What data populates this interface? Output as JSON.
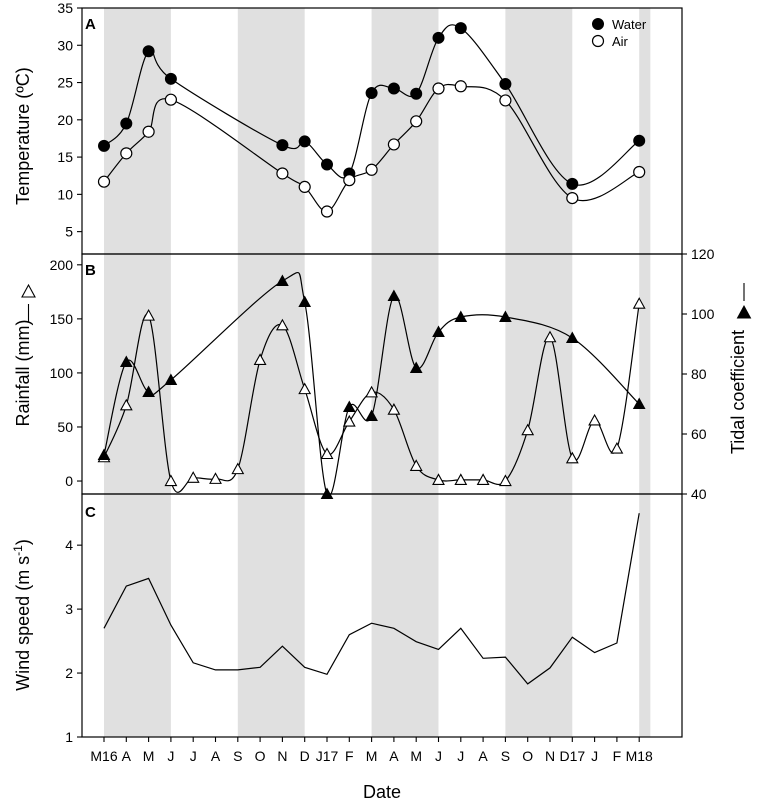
{
  "chart_data": {
    "type": "line",
    "x_label": "Date",
    "x_ticks": [
      "M16",
      "A",
      "M",
      "J",
      "J",
      "A",
      "S",
      "O",
      "N",
      "D",
      "J17",
      "F",
      "M",
      "A",
      "M",
      "J",
      "J",
      "A",
      "S",
      "O",
      "N",
      "D17",
      "J",
      "F",
      "M18"
    ],
    "shaded_bands": [
      [
        0,
        3
      ],
      [
        6,
        9
      ],
      [
        12,
        15
      ],
      [
        18,
        21
      ],
      [
        24,
        24.5
      ]
    ],
    "panels": [
      {
        "label": "A",
        "ylabel": "Temperature (ºC)",
        "ylim": [
          2,
          35
        ],
        "y_ticks": [
          5,
          10,
          15,
          20,
          25,
          30,
          35
        ],
        "legend": [
          {
            "name": "Water",
            "marker": "filled-circle"
          },
          {
            "name": "Air",
            "marker": "open-circle"
          }
        ],
        "series": [
          {
            "name": "Water",
            "marker": "filled-circle",
            "axis": "left",
            "points": [
              [
                0,
                16.5
              ],
              [
                1,
                19.5
              ],
              [
                2,
                29.2
              ],
              [
                3,
                25.5
              ],
              [
                8,
                16.6
              ],
              [
                9,
                17.1
              ],
              [
                10,
                14.0
              ],
              [
                11,
                12.8
              ],
              [
                12,
                23.6
              ],
              [
                13,
                24.2
              ],
              [
                14,
                23.5
              ],
              [
                15,
                31.0
              ],
              [
                16,
                32.3
              ],
              [
                18,
                24.8
              ],
              [
                21,
                11.4
              ],
              [
                24,
                17.2
              ]
            ]
          },
          {
            "name": "Air",
            "marker": "open-circle",
            "axis": "left",
            "points": [
              [
                0,
                11.7
              ],
              [
                1,
                15.5
              ],
              [
                2,
                18.4
              ],
              [
                3,
                22.7
              ],
              [
                8,
                12.8
              ],
              [
                9,
                11.0
              ],
              [
                10,
                7.7
              ],
              [
                11,
                11.9
              ],
              [
                12,
                13.3
              ],
              [
                13,
                16.7
              ],
              [
                14,
                19.8
              ],
              [
                15,
                24.2
              ],
              [
                16,
                24.5
              ],
              [
                18,
                22.6
              ],
              [
                21,
                9.5
              ],
              [
                24,
                13.0
              ]
            ]
          }
        ]
      },
      {
        "label": "B",
        "ylabel": "Rainfall (mm)",
        "ylabel_right": "Tidal coefficient",
        "ylim": [
          -12,
          210
        ],
        "y_ticks": [
          0,
          50,
          100,
          150,
          200
        ],
        "ylim_right": [
          40,
          120
        ],
        "y_ticks_right": [
          40,
          60,
          80,
          100,
          120
        ],
        "series": [
          {
            "name": "Rainfall",
            "marker": "open-triangle",
            "axis": "left",
            "points": [
              [
                0,
                22
              ],
              [
                1,
                70
              ],
              [
                2,
                153
              ],
              [
                3,
                0
              ],
              [
                4,
                3
              ],
              [
                5,
                2
              ],
              [
                6,
                11
              ],
              [
                7,
                112
              ],
              [
                8,
                144
              ],
              [
                9,
                85
              ],
              [
                10,
                25
              ],
              [
                11,
                55
              ],
              [
                12,
                82
              ],
              [
                13,
                66
              ],
              [
                14,
                14
              ],
              [
                15,
                1
              ],
              [
                16,
                1
              ],
              [
                17,
                1
              ],
              [
                18,
                0
              ],
              [
                19,
                47
              ],
              [
                20,
                133
              ],
              [
                21,
                21
              ],
              [
                22,
                56
              ],
              [
                23,
                30
              ],
              [
                24,
                164
              ]
            ]
          },
          {
            "name": "Tidal coefficient",
            "marker": "filled-triangle",
            "axis": "right",
            "points": [
              [
                0,
                53
              ],
              [
                1,
                84
              ],
              [
                2,
                74
              ],
              [
                3,
                78
              ],
              [
                8,
                111
              ],
              [
                9,
                104
              ],
              [
                10,
                40
              ],
              [
                11,
                69
              ],
              [
                12,
                66
              ],
              [
                13,
                106
              ],
              [
                14,
                82
              ],
              [
                15,
                94
              ],
              [
                16,
                99
              ],
              [
                18,
                99
              ],
              [
                21,
                92
              ],
              [
                24,
                70
              ]
            ]
          }
        ]
      },
      {
        "label": "C",
        "ylabel": "Wind speed (m s-1)",
        "ylabel_parts": [
          "Wind speed (m s",
          "-1",
          ")"
        ],
        "ylim": [
          1,
          4.8
        ],
        "y_ticks": [
          1,
          2,
          3,
          4
        ],
        "series": [
          {
            "name": "Wind speed",
            "marker": "none",
            "axis": "left",
            "points": [
              [
                0,
                2.7
              ],
              [
                1,
                3.36
              ],
              [
                2,
                3.48
              ],
              [
                3,
                2.75
              ],
              [
                4,
                2.16
              ],
              [
                5,
                2.05
              ],
              [
                6,
                2.05
              ],
              [
                7,
                2.09
              ],
              [
                8,
                2.42
              ],
              [
                9,
                2.09
              ],
              [
                10,
                1.98
              ],
              [
                11,
                2.6
              ],
              [
                12,
                2.78
              ],
              [
                13,
                2.7
              ],
              [
                14,
                2.49
              ],
              [
                15,
                2.37
              ],
              [
                16,
                2.7
              ],
              [
                17,
                2.23
              ],
              [
                18,
                2.25
              ],
              [
                19,
                1.83
              ],
              [
                20,
                2.08
              ],
              [
                21,
                2.56
              ],
              [
                22,
                2.32
              ],
              [
                23,
                2.47
              ],
              [
                24,
                4.5
              ]
            ]
          }
        ]
      }
    ]
  }
}
